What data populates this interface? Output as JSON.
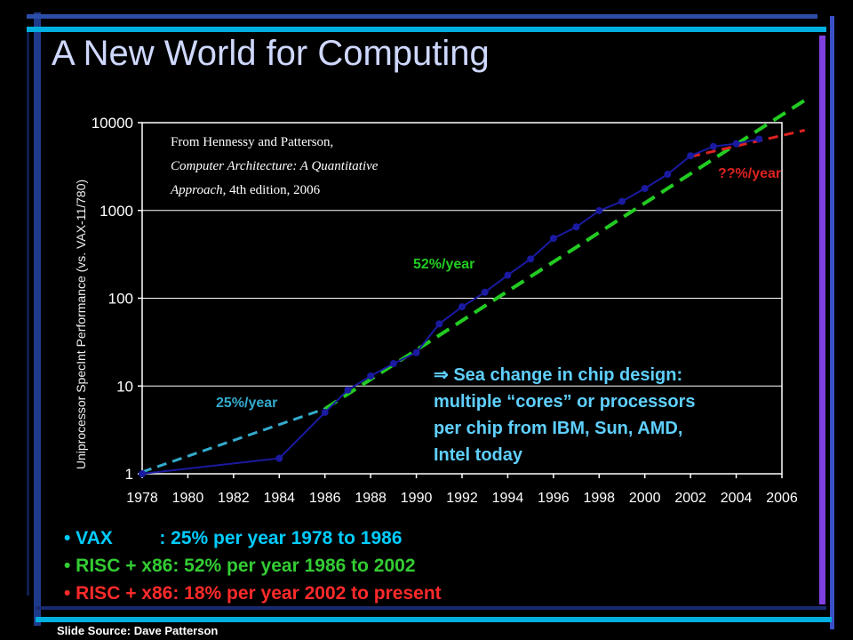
{
  "slide": {
    "title": "A New World for Computing",
    "footer": "Slide Source: Dave Patterson",
    "bullets": [
      {
        "text": "• VAX         : 25% per year 1978 to 1986",
        "color": "#00ccff"
      },
      {
        "text": "• RISC + x86: 52% per year 1986 to 2002",
        "color": "#33cc33"
      },
      {
        "text": "• RISC + x86: 18% per year 2002 to present",
        "color": "#ff2a2a"
      }
    ]
  },
  "chart_data": {
    "type": "line",
    "ylabel": "Uniprocessor SpecInt Performance (vs. VAX-11/780)",
    "xlabel": "",
    "yscale": "log",
    "ylim": [
      1,
      10000
    ],
    "xlim": [
      1978,
      2006
    ],
    "x_ticks": [
      "1978",
      "1980",
      "1982",
      "1984",
      "1986",
      "1988",
      "1990",
      "1992",
      "1994",
      "1996",
      "1998",
      "2000",
      "2002",
      "2004",
      "2006"
    ],
    "y_ticks": [
      "1",
      "10",
      "100",
      "1000",
      "10000"
    ],
    "grid": true,
    "series": [
      {
        "color": "#1a1aa0",
        "points": [
          {
            "x": 1978,
            "y": 1
          },
          {
            "x": 1984,
            "y": 1.5
          },
          {
            "x": 1986,
            "y": 5
          },
          {
            "x": 1987,
            "y": 9
          },
          {
            "x": 1988,
            "y": 13
          },
          {
            "x": 1989,
            "y": 18
          },
          {
            "x": 1990,
            "y": 24
          },
          {
            "x": 1991,
            "y": 51
          },
          {
            "x": 1992,
            "y": 80
          },
          {
            "x": 1993,
            "y": 117
          },
          {
            "x": 1994,
            "y": 183
          },
          {
            "x": 1995,
            "y": 280
          },
          {
            "x": 1996,
            "y": 481
          },
          {
            "x": 1997,
            "y": 649
          },
          {
            "x": 1998,
            "y": 993
          },
          {
            "x": 1999,
            "y": 1267
          },
          {
            "x": 2000,
            "y": 1779
          },
          {
            "x": 2001,
            "y": 2584
          },
          {
            "x": 2002,
            "y": 4195
          },
          {
            "x": 2003,
            "y": 5364
          },
          {
            "x": 2004,
            "y": 5764
          },
          {
            "x": 2005,
            "y": 6505
          }
        ]
      }
    ],
    "trend_lines": [
      {
        "label": "25%/year",
        "color": "#33aacc",
        "from": {
          "x": 1978,
          "y": 1.05
        },
        "to": {
          "x": 1986,
          "y": 5.5
        }
      },
      {
        "label": "52%/year",
        "color": "#22cc22",
        "from": {
          "x": 1986,
          "y": 5.5
        },
        "to": {
          "x": 2007,
          "y": 18000
        }
      },
      {
        "label": "??%/year",
        "color": "#dd2222",
        "from": {
          "x": 2002,
          "y": 4100
        },
        "to": {
          "x": 2007,
          "y": 8200
        }
      }
    ],
    "annotations": {
      "source": [
        {
          "text": "From Hennessy and Patterson,",
          "italic": false
        },
        {
          "text": "Computer Architecture:  A Quantitative",
          "italic": true
        },
        {
          "text": "Approach",
          "italic": true,
          "suffix": ", 4th edition, 2006"
        }
      ],
      "sea_change": [
        "⇒ Sea change in chip design:",
        "multiple “cores” or processors",
        "per chip from IBM, Sun, AMD,",
        "Intel today"
      ],
      "sea_change_color": "#5fd0ff"
    }
  }
}
